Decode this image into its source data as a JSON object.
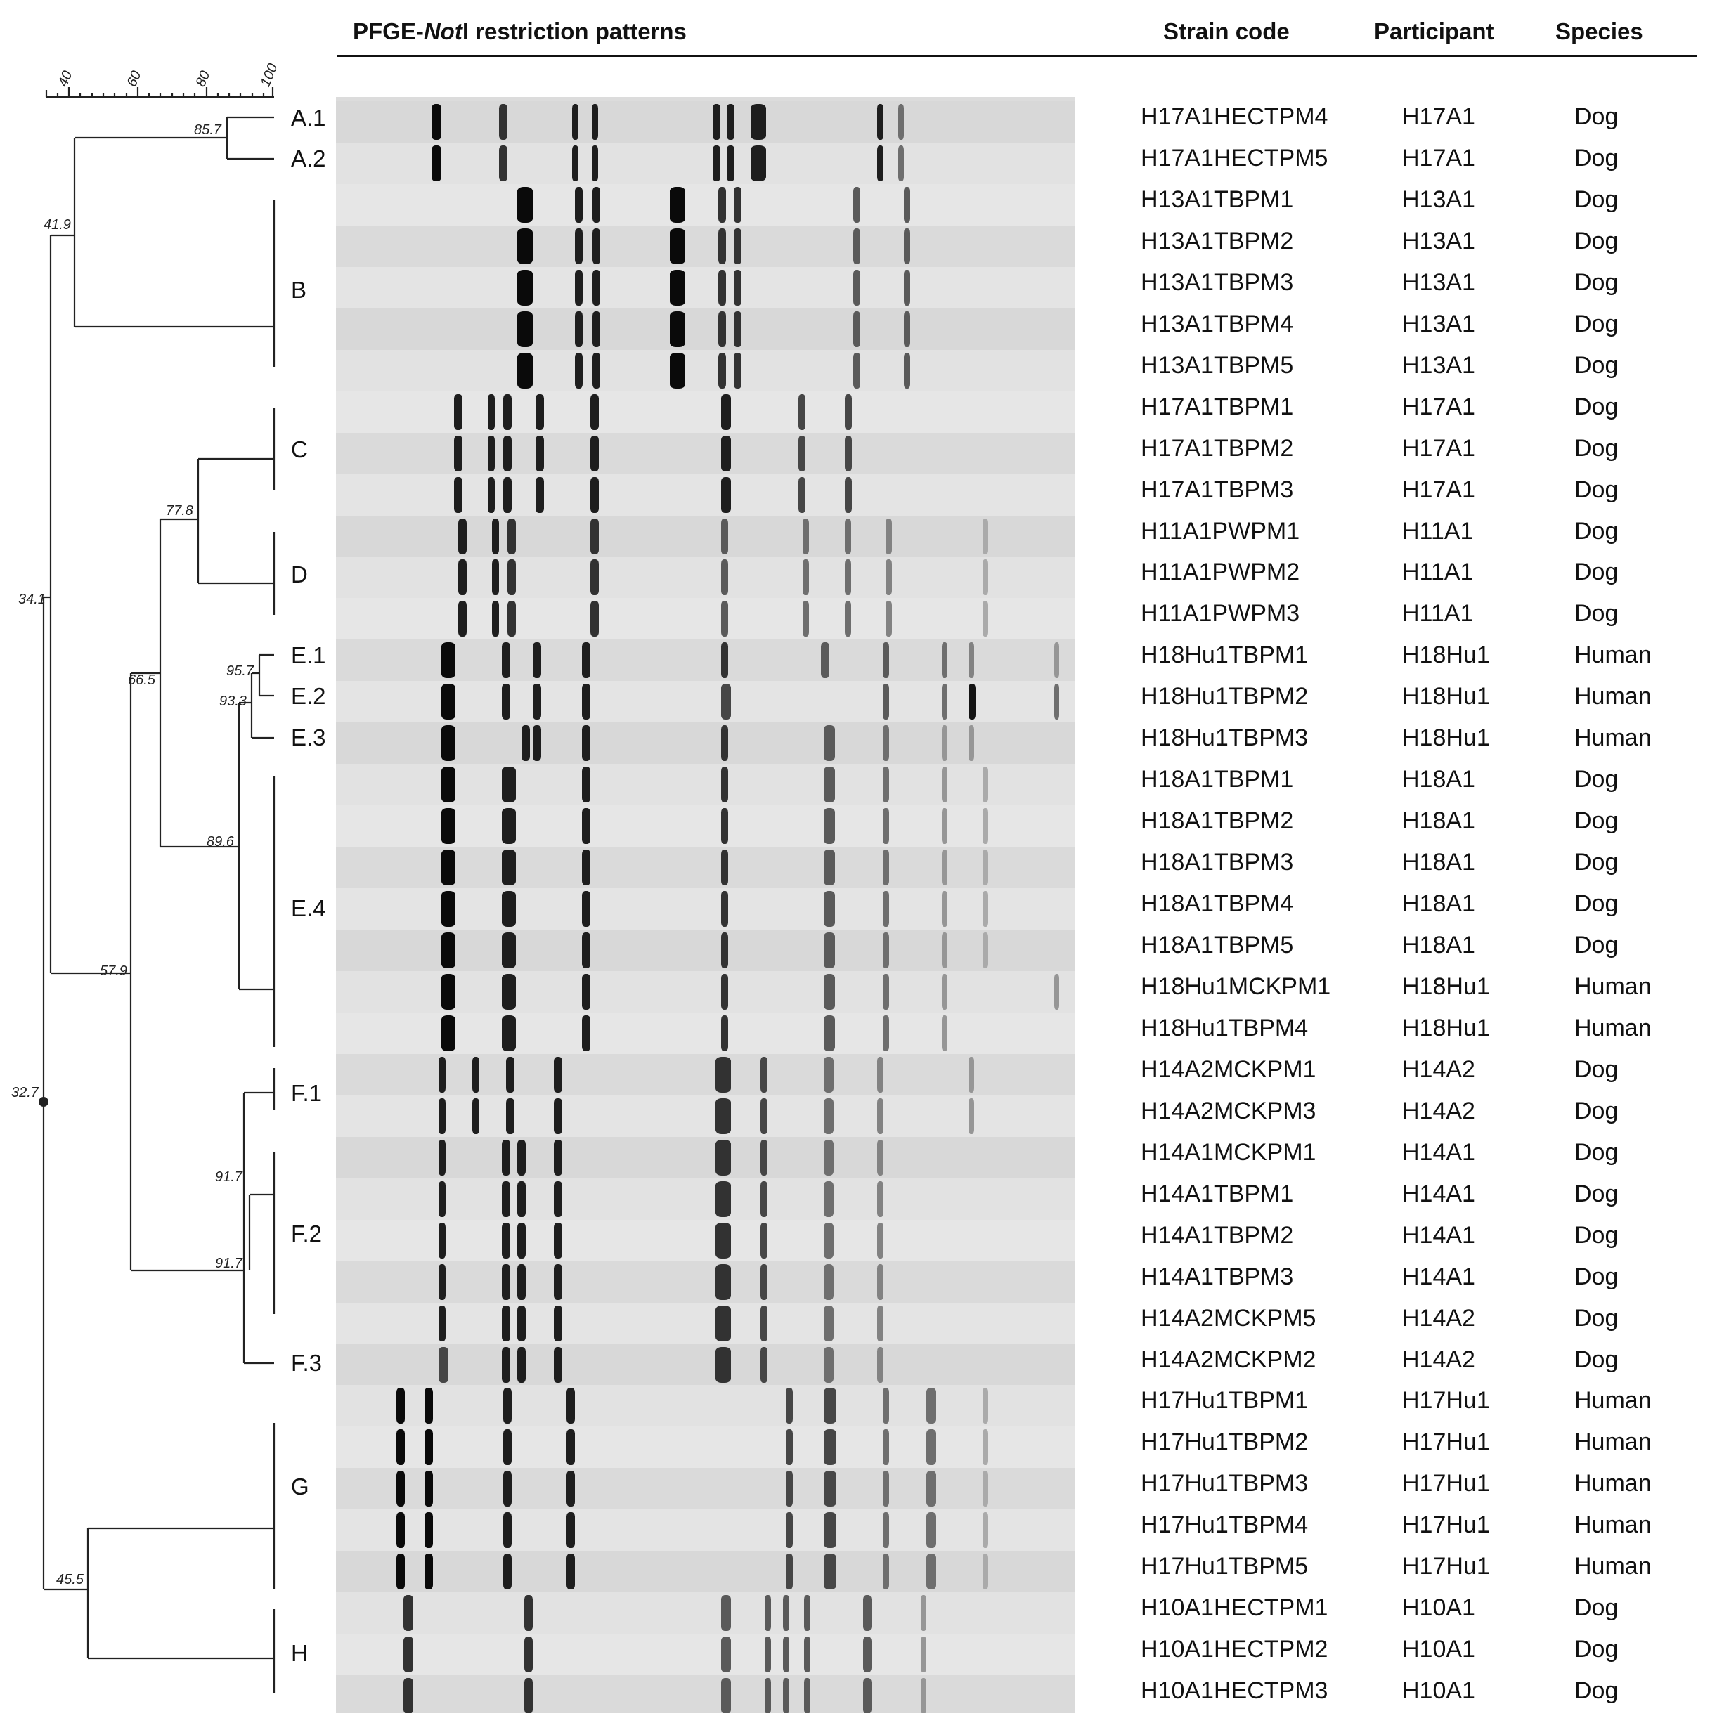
{
  "headers": {
    "pattern_prefix": "PFGE-",
    "pattern_italic": "Not",
    "pattern_suffix": "I restriction patterns",
    "strain_code": "Strain code",
    "participant": "Participant",
    "species": "Species"
  },
  "scale": {
    "ticks": [
      "40",
      "60",
      "80",
      "100"
    ]
  },
  "node_values": [
    "85.7",
    "41.9",
    "34.1",
    "77.8",
    "66.5",
    "95.7",
    "93.3",
    "89.6",
    "57.9",
    "32.7",
    "91.7",
    "91.7",
    "45.5"
  ],
  "clusters": [
    "A.1",
    "A.2",
    "B",
    "C",
    "D",
    "E.1",
    "E.2",
    "E.3",
    "E.4",
    "F.1",
    "F.2",
    "F.3",
    "G",
    "H"
  ],
  "rows": [
    {
      "strain": "H17A1HECTPM4",
      "participant": "H17A1",
      "species": "Dog"
    },
    {
      "strain": "H17A1HECTPM5",
      "participant": "H17A1",
      "species": "Dog"
    },
    {
      "strain": "H13A1TBPM1",
      "participant": "H13A1",
      "species": "Dog"
    },
    {
      "strain": "H13A1TBPM2",
      "participant": "H13A1",
      "species": "Dog"
    },
    {
      "strain": "H13A1TBPM3",
      "participant": "H13A1",
      "species": "Dog"
    },
    {
      "strain": "H13A1TBPM4",
      "participant": "H13A1",
      "species": "Dog"
    },
    {
      "strain": "H13A1TBPM5",
      "participant": "H13A1",
      "species": "Dog"
    },
    {
      "strain": "H17A1TBPM1",
      "participant": "H17A1",
      "species": "Dog"
    },
    {
      "strain": "H17A1TBPM2",
      "participant": "H17A1",
      "species": "Dog"
    },
    {
      "strain": "H17A1TBPM3",
      "participant": "H17A1",
      "species": "Dog"
    },
    {
      "strain": "H11A1PWPM1",
      "participant": "H11A1",
      "species": "Dog"
    },
    {
      "strain": "H11A1PWPM2",
      "participant": "H11A1",
      "species": "Dog"
    },
    {
      "strain": "H11A1PWPM3",
      "participant": "H11A1",
      "species": "Dog"
    },
    {
      "strain": "H18Hu1TBPM1",
      "participant": "H18Hu1",
      "species": "Human"
    },
    {
      "strain": "H18Hu1TBPM2",
      "participant": "H18Hu1",
      "species": "Human"
    },
    {
      "strain": "H18Hu1TBPM3",
      "participant": "H18Hu1",
      "species": "Human"
    },
    {
      "strain": "H18A1TBPM1",
      "participant": "H18A1",
      "species": "Dog"
    },
    {
      "strain": "H18A1TBPM2",
      "participant": "H18A1",
      "species": "Dog"
    },
    {
      "strain": "H18A1TBPM3",
      "participant": "H18A1",
      "species": "Dog"
    },
    {
      "strain": "H18A1TBPM4",
      "participant": "H18A1",
      "species": "Dog"
    },
    {
      "strain": "H18A1TBPM5",
      "participant": "H18A1",
      "species": "Dog"
    },
    {
      "strain": "H18Hu1MCKPM1",
      "participant": "H18Hu1",
      "species": "Human"
    },
    {
      "strain": "H18Hu1TBPM4",
      "participant": "H18Hu1",
      "species": "Human"
    },
    {
      "strain": "H14A2MCKPM1",
      "participant": "H14A2",
      "species": "Dog"
    },
    {
      "strain": "H14A2MCKPM3",
      "participant": "H14A2",
      "species": "Dog"
    },
    {
      "strain": "H14A1MCKPM1",
      "participant": "H14A1",
      "species": "Dog"
    },
    {
      "strain": "H14A1TBPM1",
      "participant": "H14A1",
      "species": "Dog"
    },
    {
      "strain": "H14A1TBPM2",
      "participant": "H14A1",
      "species": "Dog"
    },
    {
      "strain": "H14A1TBPM3",
      "participant": "H14A1",
      "species": "Dog"
    },
    {
      "strain": "H14A2MCKPM5",
      "participant": "H14A2",
      "species": "Dog"
    },
    {
      "strain": "H14A2MCKPM2",
      "participant": "H14A2",
      "species": "Dog"
    },
    {
      "strain": "H17Hu1TBPM1",
      "participant": "H17Hu1",
      "species": "Human"
    },
    {
      "strain": "H17Hu1TBPM2",
      "participant": "H17Hu1",
      "species": "Human"
    },
    {
      "strain": "H17Hu1TBPM3",
      "participant": "H17Hu1",
      "species": "Human"
    },
    {
      "strain": "H17Hu1TBPM4",
      "participant": "H17Hu1",
      "species": "Human"
    },
    {
      "strain": "H17Hu1TBPM5",
      "participant": "H17Hu1",
      "species": "Human"
    },
    {
      "strain": "H10A1HECTPM1",
      "participant": "H10A1",
      "species": "Dog"
    },
    {
      "strain": "H10A1HECTPM2",
      "participant": "H10A1",
      "species": "Dog"
    },
    {
      "strain": "H10A1HECTPM3",
      "participant": "H10A1",
      "species": "Dog"
    }
  ]
}
